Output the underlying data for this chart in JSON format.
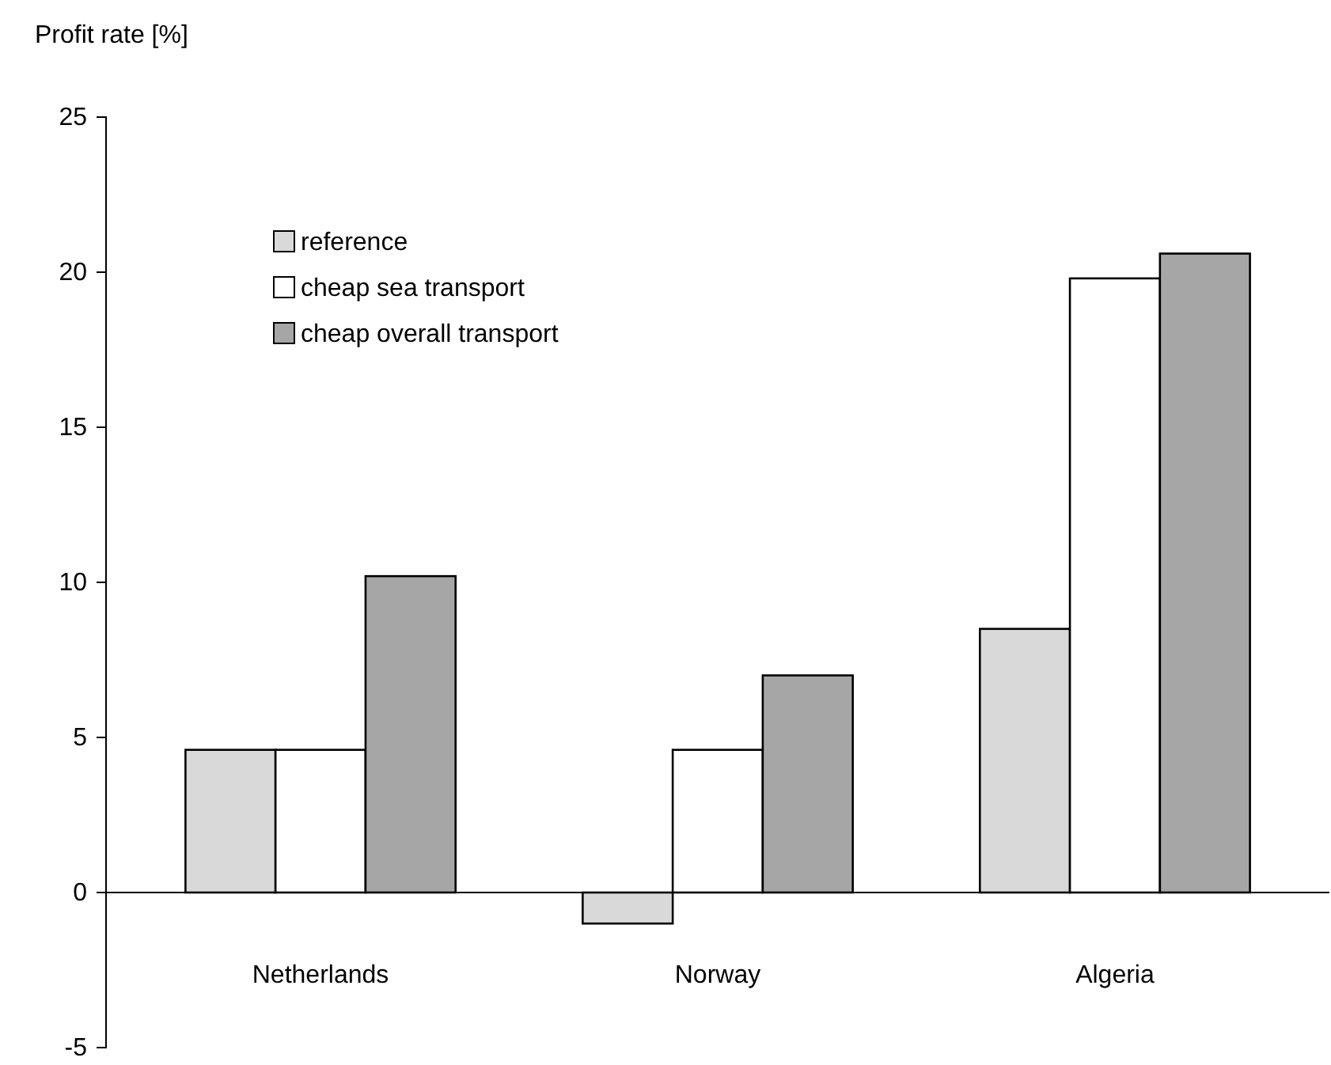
{
  "chart_data": {
    "type": "bar",
    "ylabel": "Profit rate [%]",
    "categories": [
      "Netherlands",
      "Norway",
      "Algeria"
    ],
    "series": [
      {
        "name": "reference",
        "color": "#d9d9d9",
        "values": [
          4.6,
          -1.0,
          8.5
        ]
      },
      {
        "name": "cheap sea transport",
        "color": "#ffffff",
        "values": [
          4.6,
          4.6,
          19.8
        ]
      },
      {
        "name": "cheap overall transport",
        "color": "#a6a6a6",
        "values": [
          10.2,
          7.0,
          20.6
        ]
      }
    ],
    "ylim": [
      -5,
      25
    ],
    "yticks": [
      -5,
      0,
      5,
      10,
      15,
      20,
      25
    ],
    "legend": "top left"
  }
}
